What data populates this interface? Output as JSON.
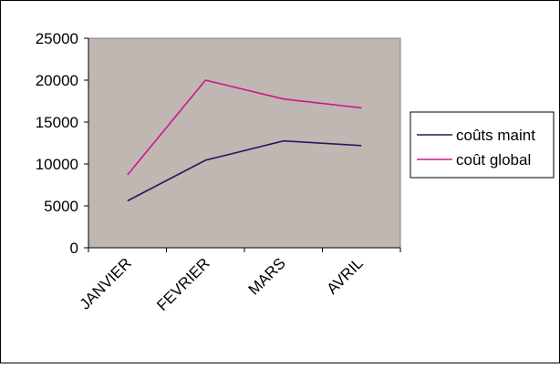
{
  "chart_data": {
    "type": "line",
    "categories": [
      "JANVIER",
      "FEVRIER",
      "MARS",
      "AVRIL"
    ],
    "series": [
      {
        "name": "coûts maint",
        "values": [
          5600,
          10450,
          12750,
          12200
        ],
        "color": "#1f1a5c"
      },
      {
        "name": "coût global",
        "values": [
          8700,
          20000,
          17750,
          16700
        ],
        "color": "#d0168c"
      }
    ],
    "yticks": [
      "0",
      "5000",
      "10000",
      "15000",
      "20000",
      "25000"
    ],
    "ylim": [
      0,
      25000
    ],
    "plot_background": "#c0b6b2",
    "gridlines": false,
    "legend_position": "right"
  }
}
